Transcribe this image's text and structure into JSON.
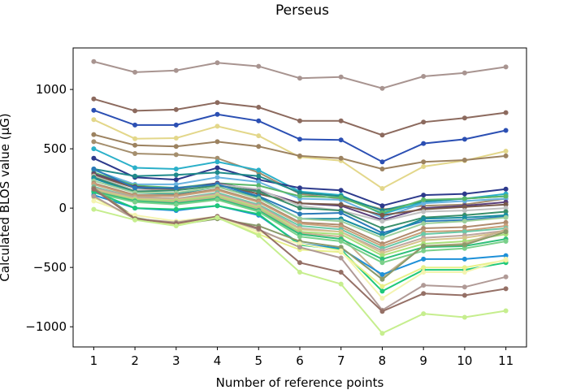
{
  "chart_data": {
    "type": "line",
    "title": "Perseus",
    "xlabel": "Number of reference points",
    "ylabel": "Calculated BLOS value (μG)",
    "x": [
      1,
      2,
      3,
      4,
      5,
      6,
      7,
      8,
      9,
      10,
      11
    ],
    "xlim": [
      0.5,
      11.5
    ],
    "ylim": [
      -1170,
      1350
    ],
    "yticks": [
      -1000,
      -500,
      0,
      500,
      1000
    ],
    "ytick_labels": [
      "−1000",
      "−500",
      "0",
      "500",
      "1000"
    ],
    "xtick_labels": [
      "1",
      "2",
      "3",
      "4",
      "5",
      "6",
      "7",
      "8",
      "9",
      "10",
      "11"
    ],
    "grid": false,
    "legend": "none",
    "series": [
      {
        "color": "#a89490",
        "values": [
          1235,
          1145,
          1160,
          1225,
          1195,
          1095,
          1105,
          1010,
          1110,
          1140,
          1190
        ]
      },
      {
        "color": "#8c6a5e",
        "values": [
          920,
          820,
          830,
          890,
          850,
          735,
          735,
          615,
          725,
          760,
          805
        ]
      },
      {
        "color": "#2b4fb3",
        "values": [
          825,
          700,
          700,
          790,
          735,
          580,
          575,
          390,
          545,
          580,
          655
        ]
      },
      {
        "color": "#e3d78a",
        "values": [
          745,
          585,
          590,
          690,
          610,
          430,
          400,
          165,
          350,
          400,
          480
        ]
      },
      {
        "color": "#9c8260",
        "values": [
          620,
          530,
          520,
          560,
          520,
          440,
          420,
          330,
          390,
          405,
          440
        ]
      },
      {
        "color": "#a58f6e",
        "values": [
          560,
          460,
          450,
          420,
          300,
          120,
          80,
          -10,
          20,
          30,
          80
        ]
      },
      {
        "color": "#2bb0c9",
        "values": [
          500,
          340,
          330,
          390,
          320,
          140,
          110,
          -50,
          50,
          80,
          120
        ]
      },
      {
        "color": "#2d3a8c",
        "values": [
          420,
          260,
          240,
          340,
          240,
          170,
          150,
          20,
          110,
          120,
          160
        ]
      },
      {
        "color": "#1f8a8a",
        "values": [
          330,
          270,
          280,
          300,
          270,
          130,
          100,
          -20,
          60,
          80,
          100
        ]
      },
      {
        "color": "#68b3e0",
        "values": [
          320,
          200,
          200,
          260,
          220,
          80,
          70,
          -80,
          40,
          60,
          80
        ]
      },
      {
        "color": "#5ab86a",
        "values": [
          300,
          190,
          170,
          210,
          190,
          100,
          90,
          -40,
          70,
          80,
          100
        ]
      },
      {
        "color": "#5a3f7a",
        "values": [
          290,
          180,
          160,
          210,
          150,
          40,
          20,
          -100,
          0,
          20,
          50
        ]
      },
      {
        "color": "#7a5a4a",
        "values": [
          280,
          170,
          150,
          200,
          120,
          40,
          30,
          -60,
          -10,
          10,
          30
        ]
      },
      {
        "color": "#c0c0c0",
        "values": [
          270,
          150,
          150,
          200,
          160,
          20,
          -20,
          -110,
          -30,
          -20,
          0
        ]
      },
      {
        "color": "#3a8f6a",
        "values": [
          260,
          140,
          150,
          190,
          140,
          0,
          -20,
          -170,
          -80,
          -60,
          -30
        ]
      },
      {
        "color": "#2a7ab8",
        "values": [
          330,
          170,
          170,
          200,
          100,
          -50,
          -40,
          -210,
          -110,
          -100,
          -70
        ]
      },
      {
        "color": "#1a8fa0",
        "values": [
          250,
          130,
          120,
          180,
          90,
          -90,
          -90,
          -230,
          -90,
          -80,
          -60
        ]
      },
      {
        "color": "#9ccf9a",
        "values": [
          230,
          130,
          130,
          180,
          80,
          -90,
          -110,
          -250,
          -130,
          -110,
          -80
        ]
      },
      {
        "color": "#b08b6e",
        "values": [
          210,
          110,
          110,
          160,
          60,
          -120,
          -140,
          -300,
          -170,
          -160,
          -120
        ]
      },
      {
        "color": "#c8a07a",
        "values": [
          200,
          100,
          100,
          150,
          50,
          -130,
          -160,
          -320,
          -200,
          -190,
          -150
        ]
      },
      {
        "color": "#6ac9a8",
        "values": [
          180,
          90,
          80,
          130,
          30,
          -150,
          -180,
          -340,
          -220,
          -200,
          -170
        ]
      },
      {
        "color": "#bda6a0",
        "values": [
          170,
          90,
          80,
          120,
          20,
          -170,
          -200,
          -360,
          -250,
          -230,
          -190
        ]
      },
      {
        "color": "#d6c48c",
        "values": [
          160,
          80,
          70,
          110,
          10,
          -180,
          -200,
          -380,
          -270,
          -250,
          -200
        ]
      },
      {
        "color": "#a8e07a",
        "values": [
          150,
          70,
          60,
          100,
          0,
          -200,
          -220,
          -400,
          -300,
          -280,
          -220
        ]
      },
      {
        "color": "#c7b08e",
        "values": [
          150,
          60,
          50,
          90,
          -10,
          -210,
          -240,
          -580,
          -320,
          -300,
          -180
        ]
      },
      {
        "color": "#2fbf7a",
        "values": [
          140,
          60,
          40,
          80,
          -20,
          -220,
          -260,
          -430,
          -330,
          -320,
          -260
        ]
      },
      {
        "color": "#7ad08a",
        "values": [
          130,
          50,
          30,
          70,
          -30,
          -240,
          -280,
          -460,
          -360,
          -340,
          -280
        ]
      },
      {
        "color": "#1e90d8",
        "values": [
          110,
          0,
          -20,
          20,
          -60,
          -300,
          -340,
          -560,
          -430,
          -430,
          -400
        ]
      },
      {
        "color": "#1ec87a",
        "values": [
          140,
          0,
          -10,
          20,
          -50,
          -310,
          -350,
          -700,
          -520,
          -520,
          -460
        ]
      },
      {
        "color": "#8a9a6a",
        "values": [
          170,
          -80,
          -140,
          -90,
          -150,
          -280,
          -330,
          -600,
          -320,
          -310,
          -200
        ]
      },
      {
        "color": "#e8f08a",
        "values": [
          90,
          -90,
          -140,
          -80,
          -220,
          -350,
          -370,
          -660,
          -500,
          -500,
          -440
        ]
      },
      {
        "color": "#f4f4b0",
        "values": [
          60,
          -60,
          -110,
          -70,
          -200,
          -300,
          -360,
          -760,
          -540,
          -540,
          -430
        ]
      },
      {
        "color": "#b09a96",
        "values": [
          100,
          -90,
          -120,
          -70,
          -180,
          -330,
          -420,
          -860,
          -650,
          -665,
          -580
        ]
      },
      {
        "color": "#957066",
        "values": [
          160,
          -90,
          -130,
          -70,
          -170,
          -460,
          -540,
          -870,
          -720,
          -735,
          -680
        ]
      },
      {
        "color": "#c6ee8e",
        "values": [
          -10,
          -100,
          -150,
          -80,
          -230,
          -540,
          -640,
          -1055,
          -890,
          -920,
          -865
        ]
      }
    ]
  }
}
